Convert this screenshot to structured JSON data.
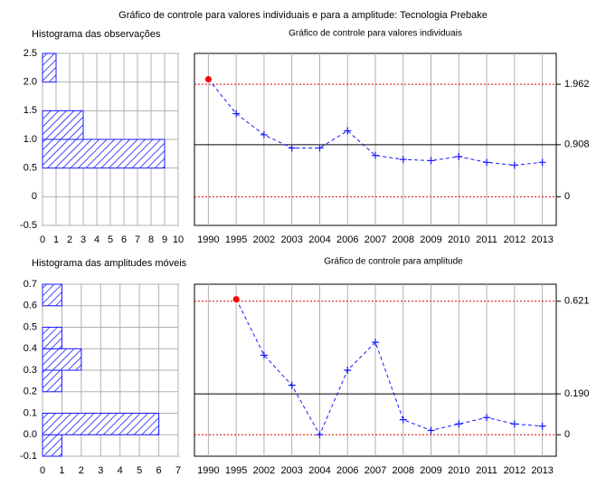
{
  "title": "Gráfico de controle para valores individuais e para a amplitude: Tecnologia Prebake",
  "chart_data": [
    {
      "type": "histogram",
      "title": "Histograma das observações",
      "orientation": "horizontal",
      "bins": [
        -0.5,
        0,
        0.5,
        1.0,
        1.5,
        2.0,
        2.5
      ],
      "counts": [
        0,
        0,
        9,
        3,
        0,
        1
      ],
      "color": "#1a1aff",
      "ylim": [
        -0.5,
        2.5
      ],
      "yticks": [
        -0.5,
        0,
        0.5,
        {
          "value": 1,
          "label": "1.0"
        },
        1.5,
        {
          "value": 2,
          "label": "2.0"
        },
        2.5
      ],
      "xlim": [
        0,
        10
      ],
      "xticks": [
        0,
        1,
        2,
        3,
        4,
        5,
        6,
        7,
        8,
        9,
        10
      ],
      "grid": true
    },
    {
      "type": "line",
      "title": "Gráfico de controle para valores individuais",
      "categories": [
        "1990",
        "1995",
        "2002",
        "2003",
        "2004",
        "2006",
        "2007",
        "2008",
        "2009",
        "2010",
        "2011",
        "2012",
        "2013"
      ],
      "values": [
        2.05,
        1.45,
        1.08,
        0.85,
        0.85,
        1.15,
        0.72,
        0.65,
        0.63,
        0.7,
        0.6,
        0.55,
        0.6
      ],
      "color": "#1a1aff",
      "ylim": [
        -0.5,
        2.5
      ],
      "y2lim": [
        -0.5,
        2.5
      ],
      "y2ticks": [
        1.962,
        0.908,
        0
      ],
      "limit_colors": [
        "#e00000",
        "#000000",
        "#e00000"
      ],
      "out_color": "#ff0000",
      "grid": true
    },
    {
      "type": "histogram",
      "title": "Histograma das amplitudes móveis",
      "orientation": "horizontal",
      "bins": [
        -0.1,
        0,
        0.1,
        0.2,
        0.3,
        0.4,
        0.5,
        0.6,
        0.7
      ],
      "counts": [
        1,
        6,
        0,
        1,
        2,
        1,
        0,
        1
      ],
      "color": "#1a1aff",
      "ylim": [
        -0.1,
        0.7
      ],
      "yticks": [
        -0.1,
        {
          "value": 0,
          "label": "0.0"
        },
        0.1,
        0.2,
        0.3,
        0.4,
        0.5,
        0.6,
        0.7
      ],
      "xlim": [
        0,
        7
      ],
      "xticks": [
        0,
        1,
        2,
        3,
        4,
        5,
        6,
        7
      ],
      "grid": true
    },
    {
      "type": "line",
      "title": "Gráfico de controle para amplitude",
      "categories": [
        "1990",
        "1995",
        "2002",
        "2003",
        "2004",
        "2006",
        "2007",
        "2008",
        "2009",
        "2010",
        "2011",
        "2012",
        "2013"
      ],
      "values": [
        null,
        0.63,
        0.37,
        0.23,
        0.0,
        0.3,
        0.43,
        0.07,
        0.02,
        0.05,
        0.08,
        0.05,
        0.04
      ],
      "color": "#1a1aff",
      "ylim": [
        -0.1,
        0.7
      ],
      "y2lim": [
        -0.1,
        0.7
      ],
      "y2ticks": [
        {
          "value": 0.621,
          "label": "0.621"
        },
        {
          "value": 0.19,
          "label": "0.190"
        },
        0
      ],
      "limit_colors": [
        "#e00000",
        "#000000",
        "#e00000"
      ],
      "out_color": "#ff0000",
      "grid": true
    }
  ]
}
